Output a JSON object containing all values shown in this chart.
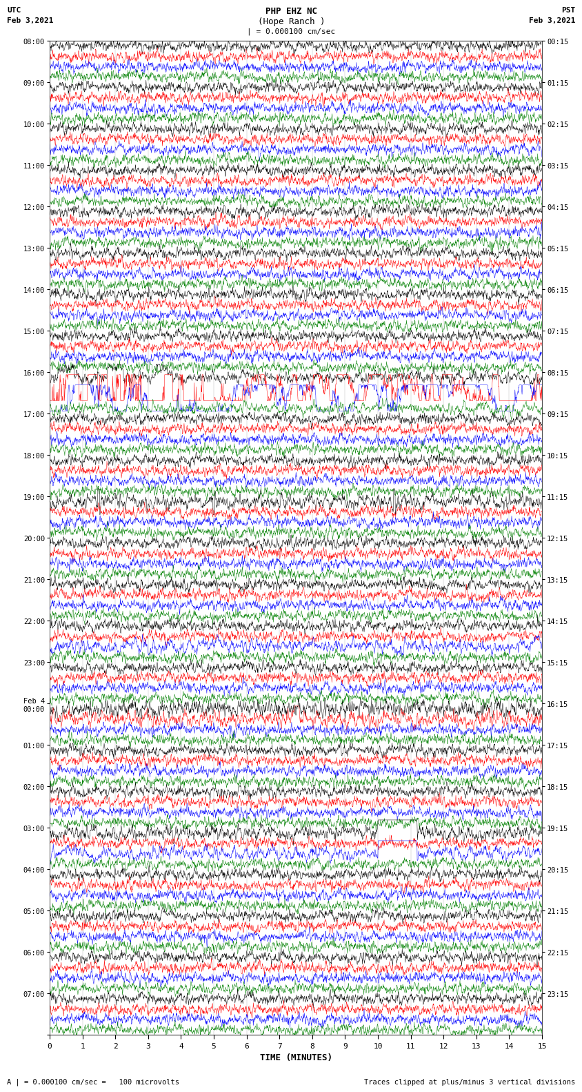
{
  "title_line1": "PHP EHZ NC",
  "title_line2": "(Hope Ranch )",
  "title_scale": "| = 0.000100 cm/sec",
  "left_header_line1": "UTC",
  "left_header_line2": "Feb 3,2021",
  "right_header_line1": "PST",
  "right_header_line2": "Feb 3,2021",
  "utc_times": [
    "08:00",
    "09:00",
    "10:00",
    "11:00",
    "12:00",
    "13:00",
    "14:00",
    "15:00",
    "16:00",
    "17:00",
    "18:00",
    "19:00",
    "20:00",
    "21:00",
    "22:00",
    "23:00",
    "Feb 4\n00:00",
    "01:00",
    "02:00",
    "03:00",
    "04:00",
    "05:00",
    "06:00",
    "07:00"
  ],
  "pst_times": [
    "00:15",
    "01:15",
    "02:15",
    "03:15",
    "04:15",
    "05:15",
    "06:15",
    "07:15",
    "08:15",
    "09:15",
    "10:15",
    "11:15",
    "12:15",
    "13:15",
    "14:15",
    "15:15",
    "16:15",
    "17:15",
    "18:15",
    "19:15",
    "20:15",
    "21:15",
    "22:15",
    "23:15"
  ],
  "colors": [
    "black",
    "red",
    "blue",
    "green"
  ],
  "xlabel": "TIME (MINUTES)",
  "footer_left": "A | = 0.000100 cm/sec =   100 microvolts",
  "footer_right": "Traces clipped at plus/minus 3 vertical divisions",
  "bg_color": "white",
  "n_hours": 24,
  "traces_per_hour": 4,
  "n_minutes": 15,
  "seed": 42
}
